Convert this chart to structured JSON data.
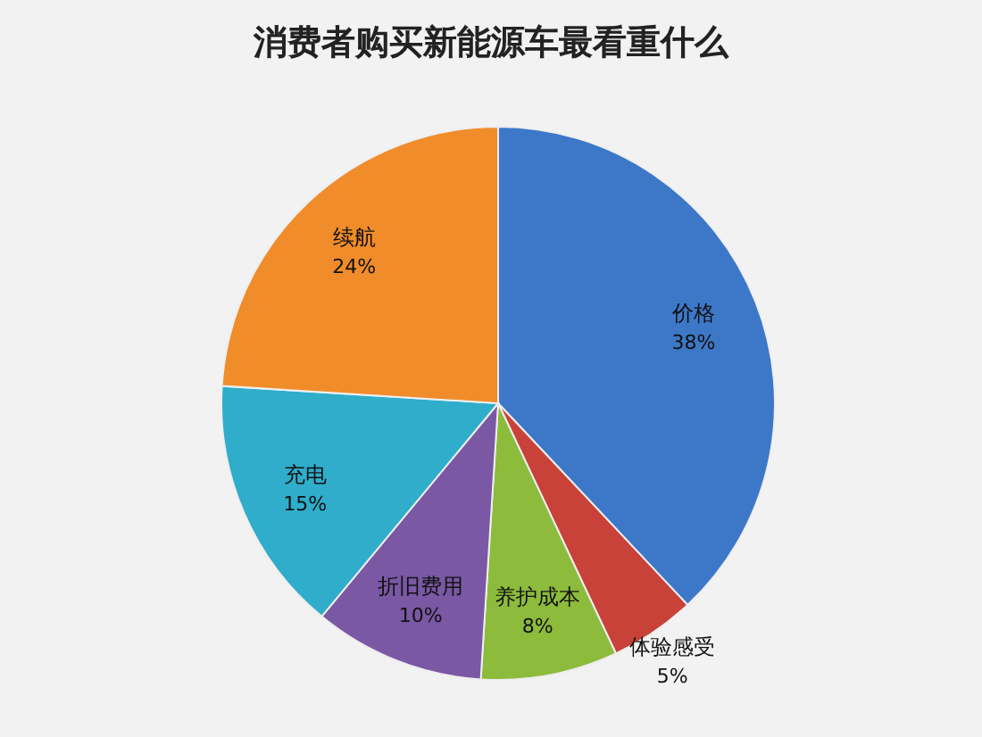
{
  "chart_data": {
    "type": "pie",
    "title": "消费者购买新能源车最看重什么",
    "categories": [
      "价格",
      "体验感受",
      "养护成本",
      "折旧费用",
      "充电",
      "续航"
    ],
    "values": [
      38,
      5,
      8,
      10,
      15,
      24
    ],
    "value_labels": [
      "38%",
      "5%",
      "8%",
      "10%",
      "15%",
      "24%"
    ],
    "colors": [
      "#3d78c8",
      "#c8423a",
      "#8dbb3c",
      "#7a58a4",
      "#2fadcb",
      "#f08c2a"
    ]
  }
}
